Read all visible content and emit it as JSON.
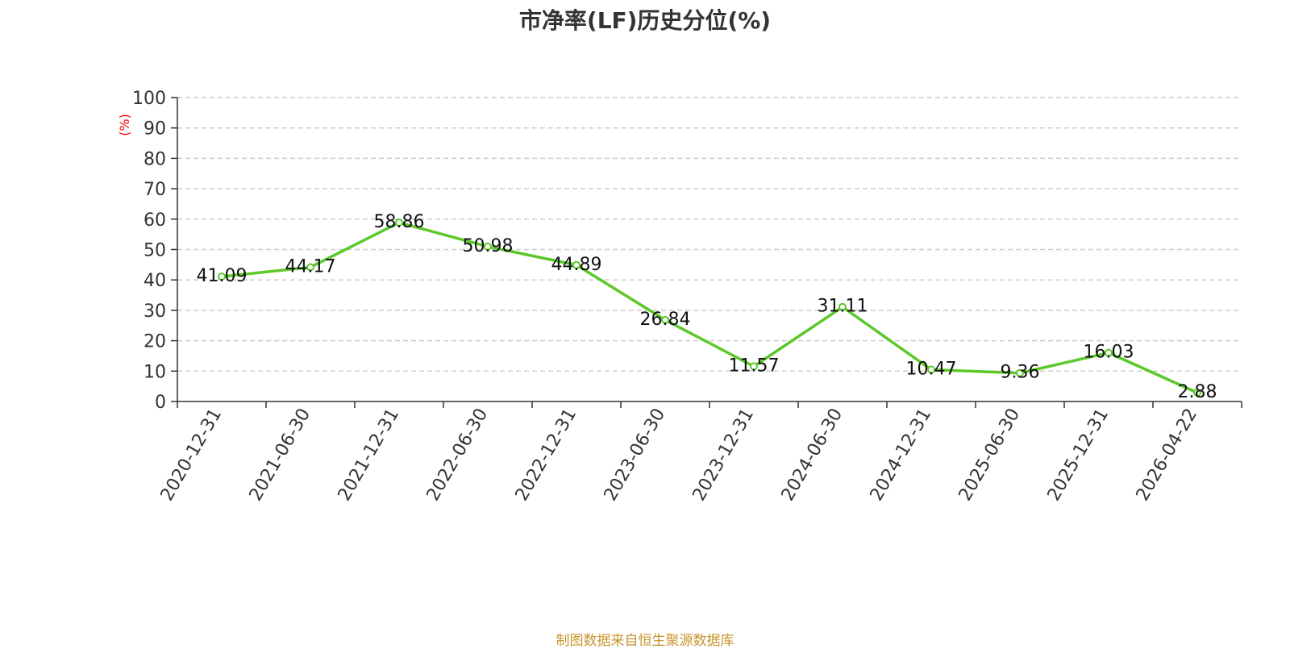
{
  "chart_data": {
    "type": "line",
    "title": "市净率(LF)历史分位(%)",
    "ylabel": "(%)",
    "xlabel": "",
    "categories": [
      "2020-12-31",
      "2021-06-30",
      "2021-12-31",
      "2022-06-30",
      "2022-12-31",
      "2023-06-30",
      "2023-12-31",
      "2024-06-30",
      "2024-12-31",
      "2025-06-30",
      "2025-12-31",
      "2026-04-22"
    ],
    "series": [
      {
        "values": [
          41.09,
          44.17,
          58.86,
          50.98,
          44.89,
          26.84,
          11.57,
          31.11,
          10.47,
          9.36,
          16.03,
          2.88
        ]
      }
    ],
    "data_labels": [
      "41.09",
      "44.17",
      "58.86",
      "50.98",
      "44.89",
      "26.84",
      "11.57",
      "31.11",
      "10.47",
      "9.36",
      "16.03",
      "2.88"
    ],
    "ylim": [
      0,
      100
    ],
    "yticks": [
      0,
      10,
      20,
      30,
      40,
      50,
      60,
      70,
      80,
      90,
      100
    ],
    "grid": true,
    "line_color": "#5cc82a",
    "source": "制图数据来自恒生聚源数据库"
  }
}
